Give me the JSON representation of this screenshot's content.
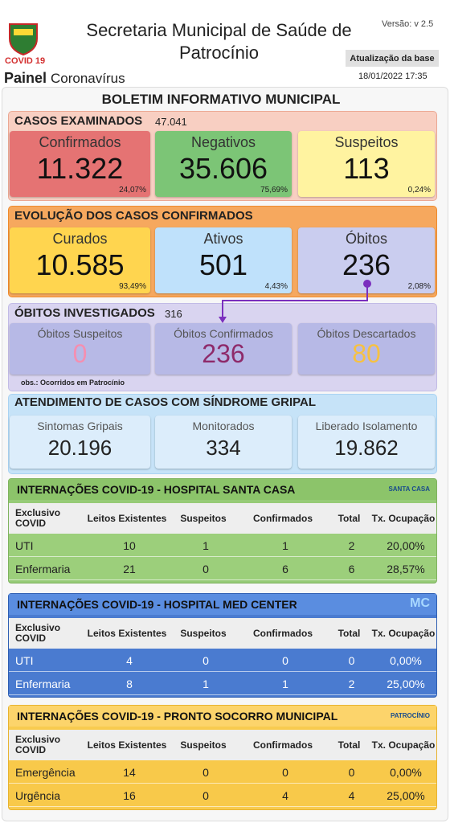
{
  "header": {
    "logo_label": "COVID 19",
    "panel": "Painel",
    "panel_sub": "Coronavírus",
    "title": "Secretaria Municipal de Saúde de Patrocínio",
    "version": "Versão: v 2.5",
    "update_button": "Atualização da base",
    "update_date": "18/01/2022 17:35"
  },
  "bulletin_title": "BOLETIM INFORMATIVO MUNICIPAL",
  "sections": [
    {
      "title": "CASOS EXAMINADOS",
      "total": "47.041",
      "cards": [
        {
          "label": "Confirmados",
          "value": "11.322",
          "percent": "24,07%"
        },
        {
          "label": "Negativos",
          "value": "35.606",
          "percent": "75,69%"
        },
        {
          "label": "Suspeitos",
          "value": "113",
          "percent": "0,24%"
        }
      ]
    },
    {
      "title": "EVOLUÇÃO DOS CASOS CONFIRMADOS",
      "cards": [
        {
          "label": "Curados",
          "value": "10.585",
          "percent": "93,49%"
        },
        {
          "label": "Ativos",
          "value": "501",
          "percent": "4,43%"
        },
        {
          "label": "Óbitos",
          "value": "236",
          "percent": "2,08%"
        }
      ]
    },
    {
      "title": "ÓBITOS INVESTIGADOS",
      "total": "316",
      "note": "obs.: Ocorridos em Patrocínio",
      "cards": [
        {
          "label": "Óbitos Suspeitos",
          "value": "0"
        },
        {
          "label": "Óbitos Confirmados",
          "value": "236"
        },
        {
          "label": "Óbitos Descartados",
          "value": "80"
        }
      ]
    },
    {
      "title": "ATENDIMENTO DE CASOS COM SÍNDROME GRIPAL",
      "cards": [
        {
          "label": "Sintomas Gripais",
          "value": "20.196"
        },
        {
          "label": "Monitorados",
          "value": "334"
        },
        {
          "label": "Liberado Isolamento",
          "value": "19.862"
        }
      ]
    }
  ],
  "tables": [
    {
      "title": "INTERNAÇÕES COVID-19 - HOSPITAL SANTA CASA",
      "logo": "SANTA CASA",
      "header": [
        "Exclusivo COVID",
        "Leitos Existentes",
        "Suspeitos",
        "Confirmados",
        "Total",
        "Tx. Ocupação"
      ],
      "rows": [
        [
          "UTI",
          "10",
          "1",
          "1",
          "2",
          "20,00%"
        ],
        [
          "Enfermaria",
          "21",
          "0",
          "6",
          "6",
          "28,57%"
        ]
      ]
    },
    {
      "title": "INTERNAÇÕES COVID-19 - HOSPITAL MED CENTER",
      "logo": "MC",
      "header": [
        "Exclusivo COVID",
        "Leitos Existentes",
        "Suspeitos",
        "Confirmados",
        "Total",
        "Tx. Ocupação"
      ],
      "rows": [
        [
          "UTI",
          "4",
          "0",
          "0",
          "0",
          "0,00%"
        ],
        [
          "Enfermaria",
          "8",
          "1",
          "1",
          "2",
          "25,00%"
        ]
      ]
    },
    {
      "title": "INTERNAÇÕES COVID-19 - PRONTO SOCORRO MUNICIPAL",
      "logo": "PATROCÍNIO",
      "header": [
        "Exclusivo COVID",
        "Leitos Existentes",
        "Suspeitos",
        "Confirmados",
        "Total",
        "Tx. Ocupação"
      ],
      "rows": [
        [
          "Emergência",
          "14",
          "0",
          "0",
          "0",
          "0,00%"
        ],
        [
          "Urgência",
          "16",
          "0",
          "4",
          "4",
          "25,00%"
        ]
      ]
    }
  ]
}
